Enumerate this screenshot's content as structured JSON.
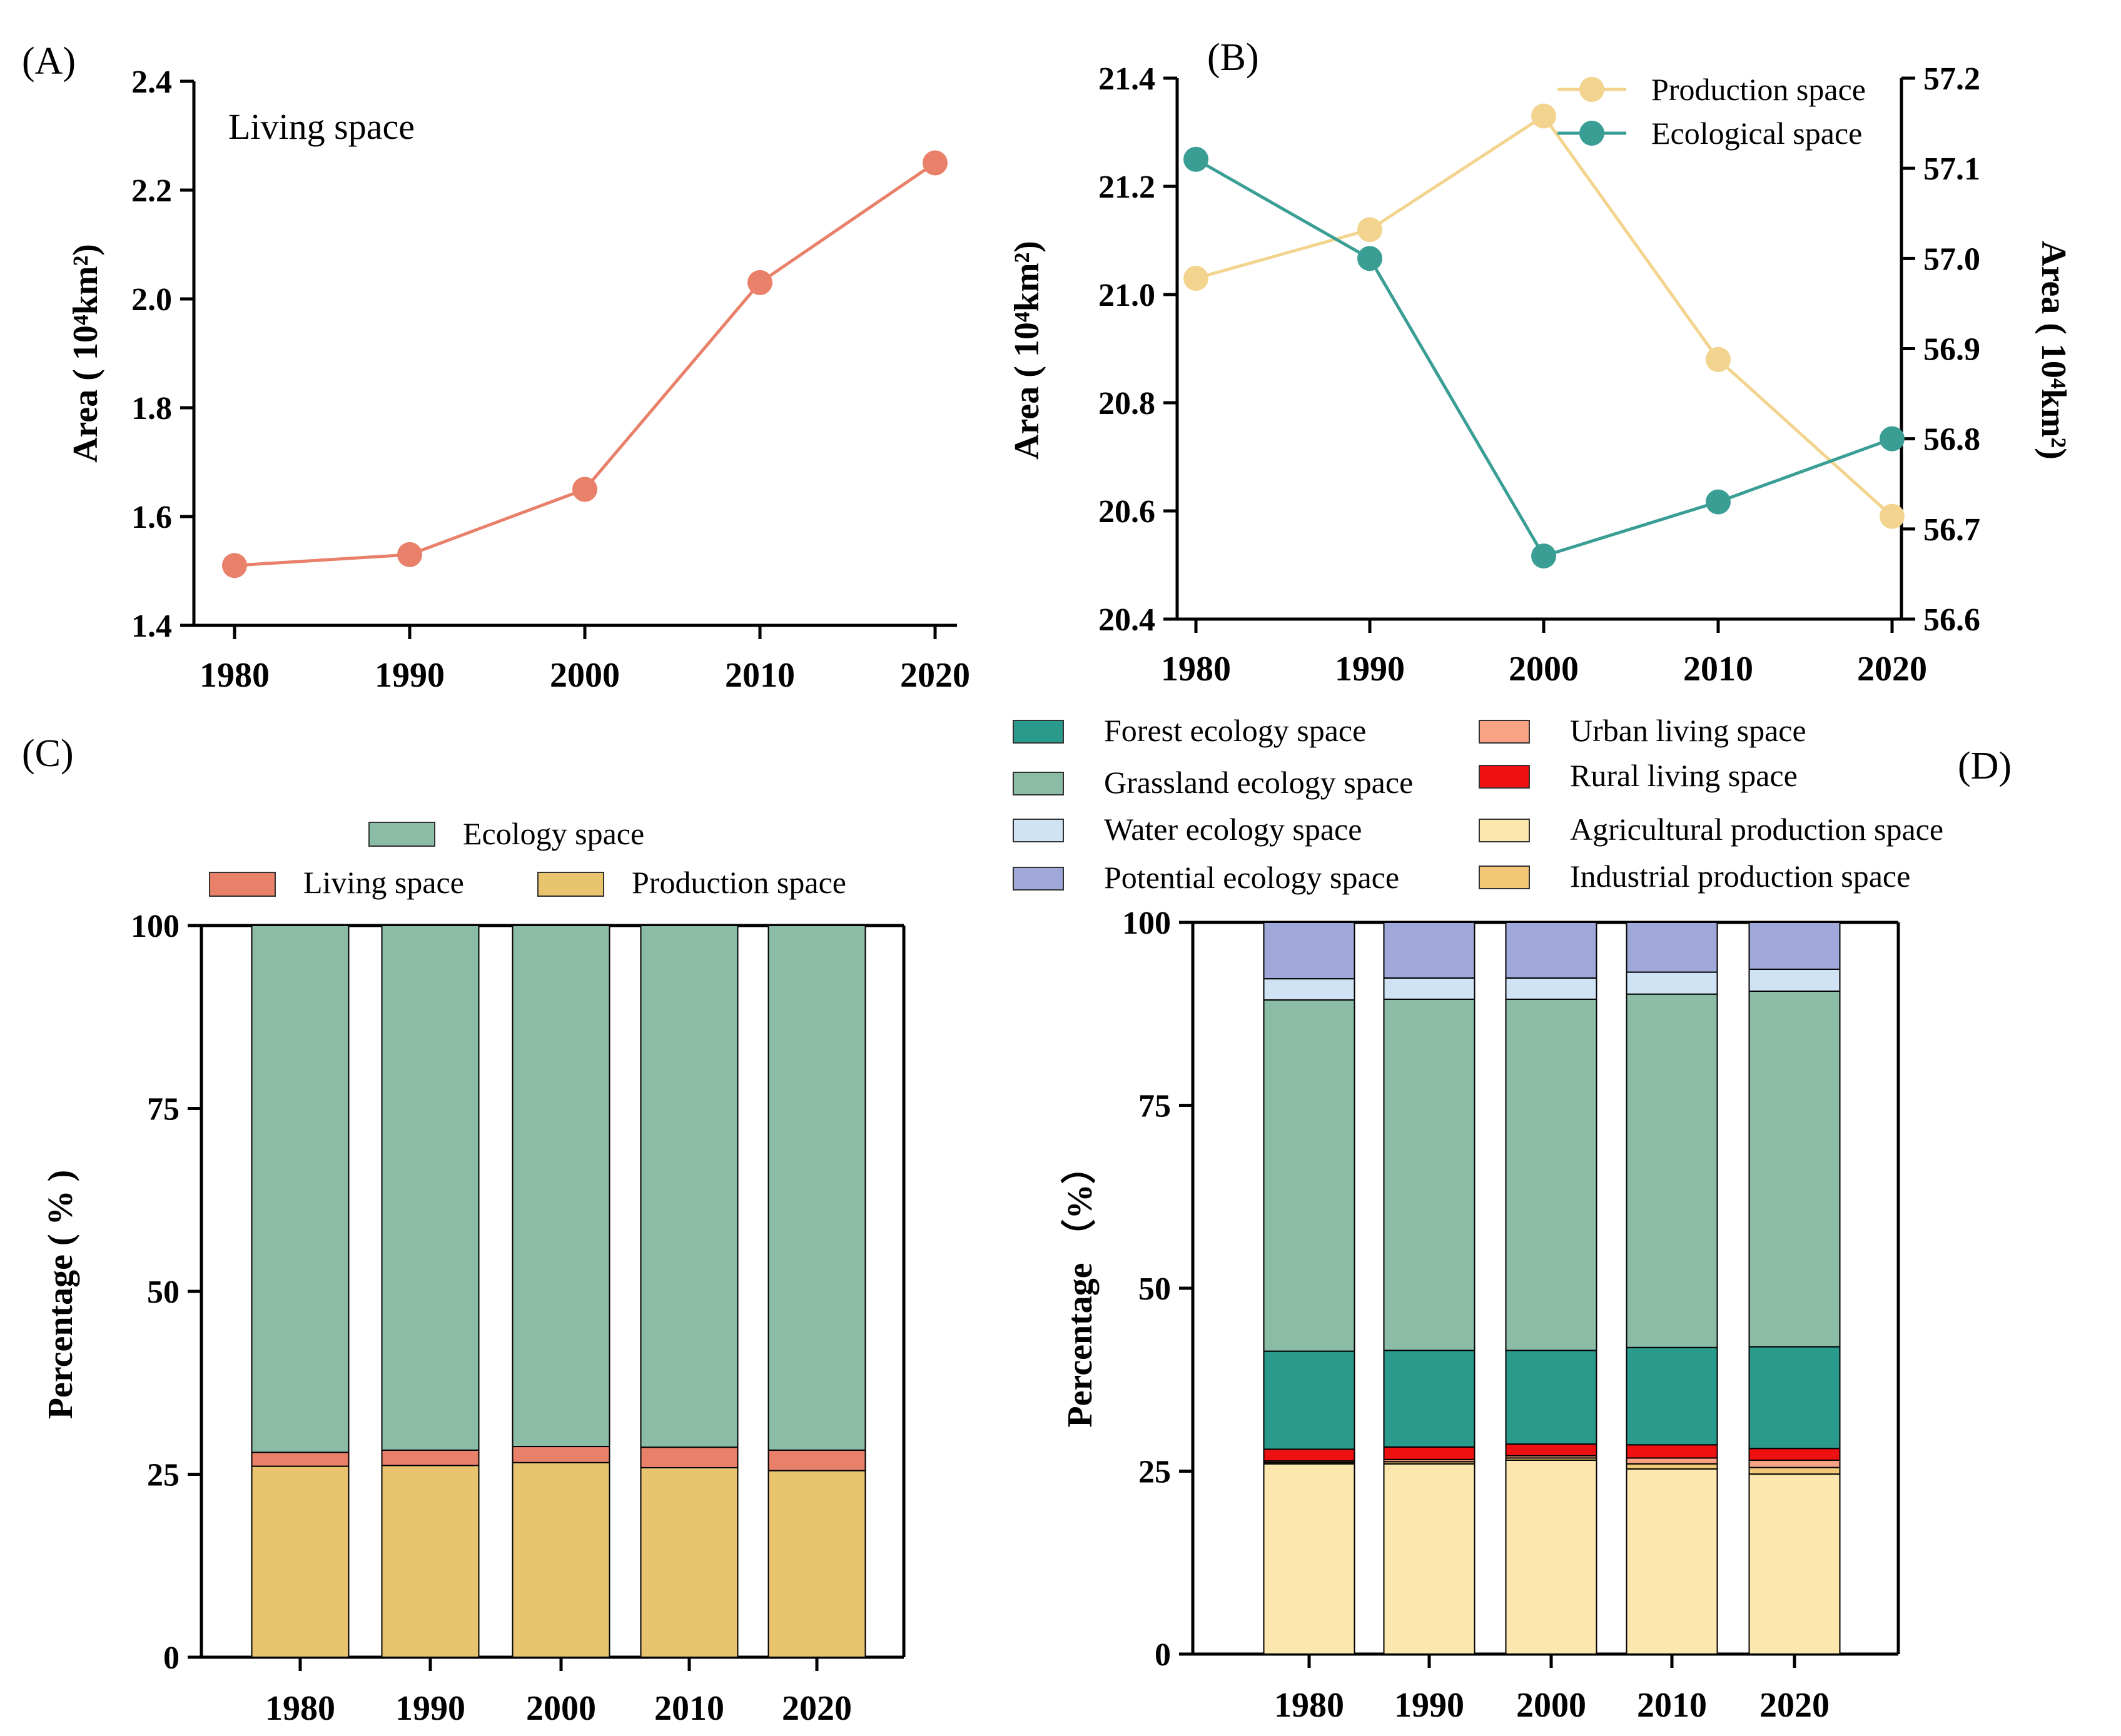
{
  "chart_data": [
    {
      "panel": "(A)",
      "type": "line",
      "annotation": "Living space",
      "x": [
        "1980",
        "1990",
        "2000",
        "2010",
        "2020"
      ],
      "series": [
        {
          "name": "Living space",
          "values": [
            1.51,
            1.53,
            1.65,
            2.03,
            2.25
          ],
          "color": "#E8806A"
        }
      ],
      "ylim": [
        1.4,
        2.4
      ],
      "yticks": [
        "1.4",
        "1.6",
        "1.8",
        "2.0",
        "2.2",
        "2.4"
      ],
      "ylabel": "Area ( 10⁴km²)"
    },
    {
      "panel": "(B)",
      "type": "line",
      "x": [
        "1980",
        "1990",
        "2000",
        "2010",
        "2020"
      ],
      "series": [
        {
          "name": "Production space",
          "axis": "left",
          "values": [
            21.03,
            21.12,
            21.33,
            20.88,
            20.59
          ],
          "color": "#F2D48F"
        },
        {
          "name": "Ecological space",
          "axis": "right",
          "values": [
            57.11,
            57.0,
            56.67,
            56.73,
            56.8
          ],
          "color": "#3A9E94"
        }
      ],
      "ylim_left": [
        20.4,
        21.4
      ],
      "yticks_left": [
        "20.4",
        "20.6",
        "20.8",
        "21.0",
        "21.2",
        "21.4"
      ],
      "ylim_right": [
        56.6,
        57.2
      ],
      "yticks_right": [
        "56.6",
        "56.7",
        "56.8",
        "56.9",
        "57.0",
        "57.1",
        "57.2"
      ],
      "ylabel_left": "Area ( 10⁴km²)",
      "ylabel_right": "Area ( 10⁴km²)"
    },
    {
      "panel": "(C)",
      "type": "bar",
      "stacked": true,
      "categories": [
        "1980",
        "1990",
        "2000",
        "2010",
        "2020"
      ],
      "series": [
        {
          "name": "Production space",
          "values": [
            26.1,
            26.2,
            26.6,
            25.9,
            25.5
          ],
          "color": "#E8C46E"
        },
        {
          "name": "Living space",
          "values": [
            1.9,
            2.1,
            2.2,
            2.8,
            2.8
          ],
          "color": "#E8806A"
        },
        {
          "name": "Ecology space",
          "values": [
            72.0,
            71.7,
            71.2,
            71.3,
            71.7
          ],
          "color": "#8BBCA6"
        }
      ],
      "ylim": [
        0,
        100
      ],
      "yticks": [
        "0",
        "25",
        "50",
        "75",
        "100"
      ],
      "ylabel": "Percentage ( % )"
    },
    {
      "panel": "(D)",
      "type": "bar",
      "stacked": true,
      "categories": [
        "1980",
        "1990",
        "2000",
        "2010",
        "2020"
      ],
      "series": [
        {
          "name": "Agricultural production space",
          "values": [
            26.0,
            26.0,
            26.5,
            25.3,
            24.6
          ],
          "color": "#FCE7AF"
        },
        {
          "name": "Industrial production space",
          "values": [
            0.2,
            0.3,
            0.3,
            0.7,
            0.9
          ],
          "color": "#F2C877"
        },
        {
          "name": "Urban living space",
          "values": [
            0.2,
            0.3,
            0.3,
            0.8,
            1.0
          ],
          "color": "#F8A384"
        },
        {
          "name": "Rural living space",
          "values": [
            1.6,
            1.7,
            1.6,
            1.8,
            1.6
          ],
          "color": "#EE1111"
        },
        {
          "name": "Forest ecology space",
          "values": [
            13.4,
            13.2,
            12.8,
            13.3,
            13.9
          ],
          "color": "#2A9A8C"
        },
        {
          "name": "Grassland ecology space",
          "values": [
            48.0,
            48.0,
            48.0,
            48.3,
            48.6
          ],
          "color": "#8BBCA6"
        },
        {
          "name": "Water ecology space",
          "values": [
            2.9,
            2.9,
            2.9,
            3.0,
            3.0
          ],
          "color": "#CFE3F5"
        },
        {
          "name": "Potential ecology space",
          "values": [
            7.7,
            7.6,
            7.6,
            6.8,
            6.4
          ],
          "color": "#9FA8D8"
        }
      ],
      "ylim": [
        0,
        100
      ],
      "yticks": [
        "0",
        "25",
        "50",
        "75",
        "100"
      ],
      "ylabel": "Percentage （%）"
    }
  ],
  "legend_c": {
    "ecology": "Ecology space",
    "living": "Living space",
    "production": "Production space"
  },
  "legend_d": {
    "forest": "Forest ecology space",
    "grassland": "Grassland ecology space",
    "water": "Water ecology space",
    "potential": "Potential ecology space",
    "urban": "Urban living space",
    "rural": "Rural living space",
    "agricultural": "Agricultural production space",
    "industrial": "Industrial production space"
  },
  "colors": {
    "living": "#E8806A",
    "production_line": "#F2D48F",
    "ecological_line": "#3A9E94",
    "production_bar": "#E8C46E",
    "ecology_bar": "#8BBCA6"
  }
}
